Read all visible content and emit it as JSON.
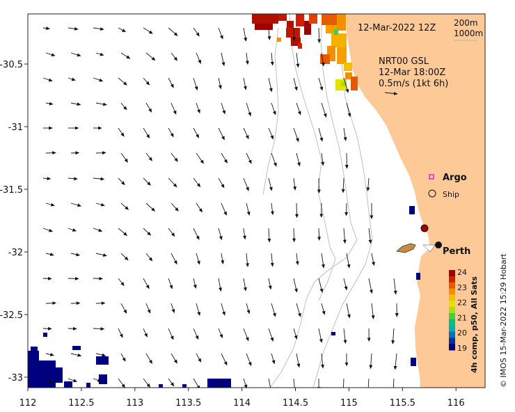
{
  "map": {
    "date_label": "12-Mar-2022 12Z",
    "isobath_labels": [
      "200m",
      "1000m"
    ],
    "model_block": {
      "model": "NRT00 GSL",
      "valid_time": "12-Mar 18:00Z",
      "scale": "0.5m/s (1kt 6h)"
    },
    "lon_ticks": [
      "112",
      "112.5",
      "113",
      "113.5",
      "114",
      "114.5",
      "115",
      "115.5",
      "116"
    ],
    "lat_ticks": [
      "-30.5",
      "-31",
      "-31.5",
      "-32",
      "-32.5",
      "-33"
    ],
    "legend": {
      "argo": "Argo",
      "ship": "Ship"
    },
    "city": "Perth",
    "colorbar": {
      "ticks": [
        "24",
        "23",
        "22",
        "21",
        "20",
        "19"
      ],
      "caption": "4h comp, p50, All Sats",
      "colors": [
        "#a00000",
        "#d02000",
        "#e85a00",
        "#f29100",
        "#f5c000",
        "#e8e000",
        "#a8e000",
        "#40d040",
        "#00c080",
        "#00b0b0",
        "#0070c0",
        "#0030a0",
        "#000080"
      ]
    },
    "credit": "© IMOS 15-Mar-2022 15:29 Hobart",
    "colors": {
      "land": "#fdc996",
      "argo": "#e020e0",
      "deep_sst": "#000080",
      "isobath": "#b8b8b8"
    }
  }
}
